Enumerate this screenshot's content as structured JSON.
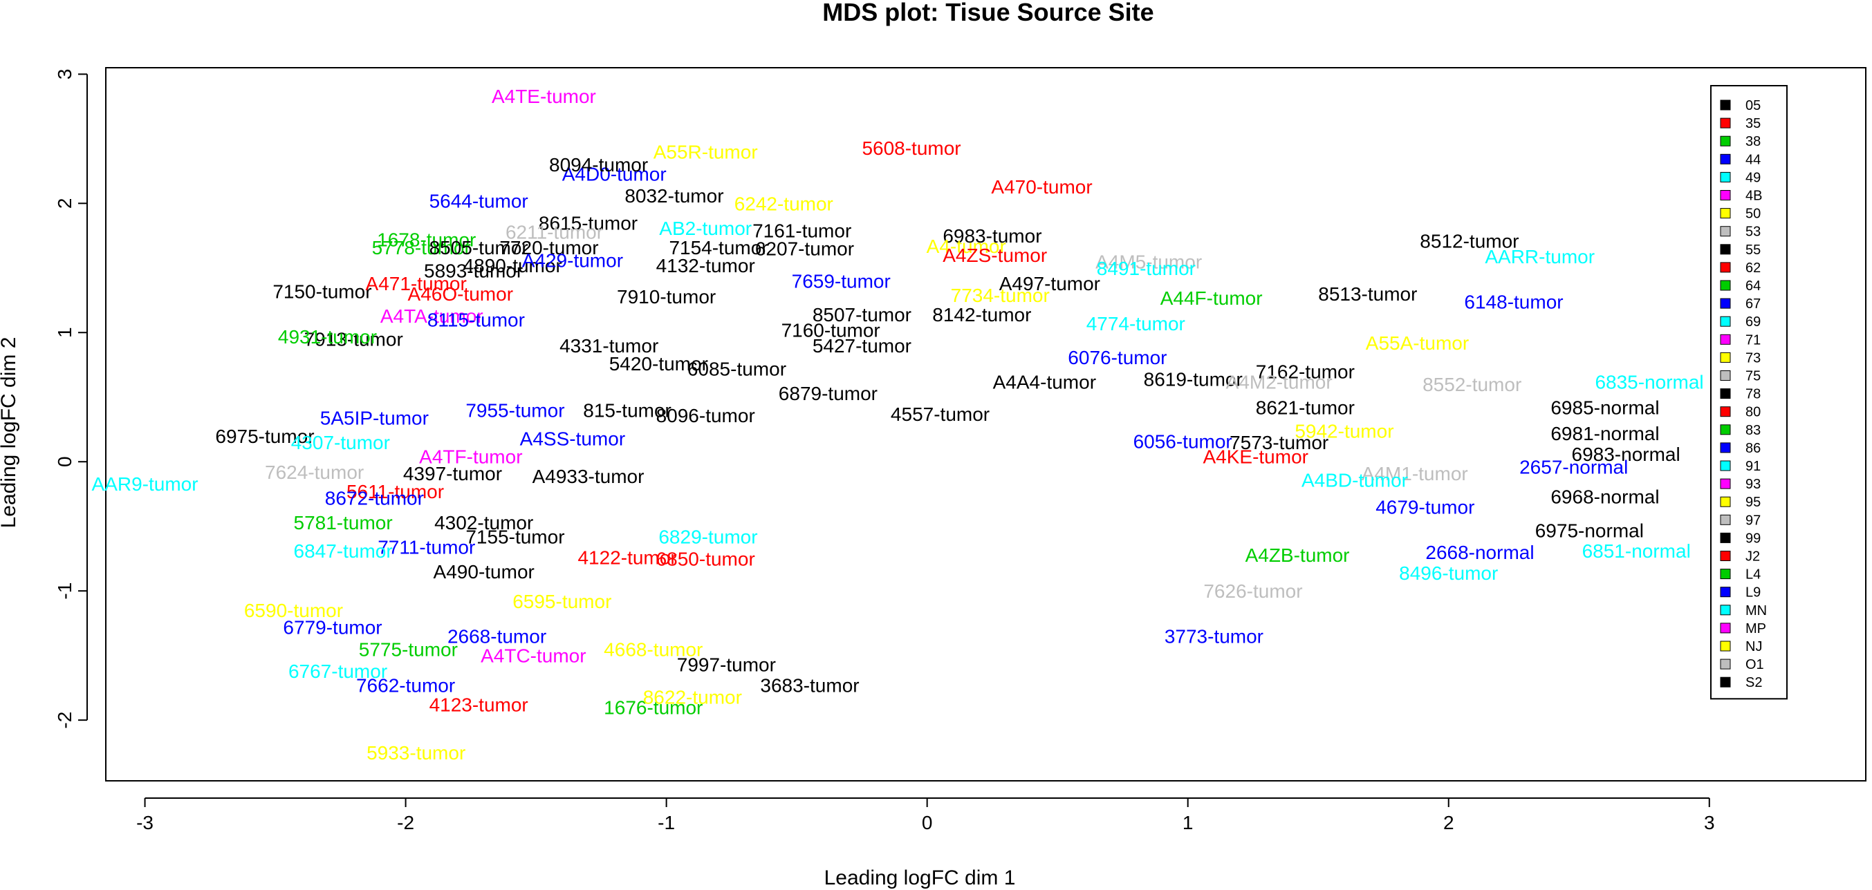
{
  "chart_data": {
    "type": "scatter",
    "title": "MDS plot: Tisue Source Site",
    "xlabel": "Leading logFC dim 1",
    "ylabel": "Leading logFC dim 2",
    "xlim": [
      -3.15,
      3.6
    ],
    "ylim": [
      -2.47,
      3.05
    ],
    "x_ticks": [
      -3,
      -2,
      -1,
      0,
      1,
      2,
      3
    ],
    "y_ticks": [
      -2,
      -1,
      0,
      1,
      2,
      3
    ],
    "grid": false,
    "legend_position": "right",
    "legend": [
      {
        "label": "05",
        "color": "#000000"
      },
      {
        "label": "35",
        "color": "#FF0000"
      },
      {
        "label": "38",
        "color": "#00CD00"
      },
      {
        "label": "44",
        "color": "#0000FF"
      },
      {
        "label": "49",
        "color": "#00FFFF"
      },
      {
        "label": "4B",
        "color": "#FF00FF"
      },
      {
        "label": "50",
        "color": "#FFFF00"
      },
      {
        "label": "53",
        "color": "#BEBEBE"
      },
      {
        "label": "55",
        "color": "#000000"
      },
      {
        "label": "62",
        "color": "#FF0000"
      },
      {
        "label": "64",
        "color": "#00CD00"
      },
      {
        "label": "67",
        "color": "#0000FF"
      },
      {
        "label": "69",
        "color": "#00FFFF"
      },
      {
        "label": "71",
        "color": "#FF00FF"
      },
      {
        "label": "73",
        "color": "#FFFF00"
      },
      {
        "label": "75",
        "color": "#BEBEBE"
      },
      {
        "label": "78",
        "color": "#000000"
      },
      {
        "label": "80",
        "color": "#FF0000"
      },
      {
        "label": "83",
        "color": "#00CD00"
      },
      {
        "label": "86",
        "color": "#0000FF"
      },
      {
        "label": "91",
        "color": "#00FFFF"
      },
      {
        "label": "93",
        "color": "#FF00FF"
      },
      {
        "label": "95",
        "color": "#FFFF00"
      },
      {
        "label": "97",
        "color": "#BEBEBE"
      },
      {
        "label": "99",
        "color": "#000000"
      },
      {
        "label": "J2",
        "color": "#FF0000"
      },
      {
        "label": "L4",
        "color": "#00CD00"
      },
      {
        "label": "L9",
        "color": "#0000FF"
      },
      {
        "label": "MN",
        "color": "#00FFFF"
      },
      {
        "label": "MP",
        "color": "#FF00FF"
      },
      {
        "label": "NJ",
        "color": "#FFFF00"
      },
      {
        "label": "O1",
        "color": "#BEBEBE"
      },
      {
        "label": "S2",
        "color": "#000000"
      }
    ],
    "points": [
      {
        "label": "A4TE-tumor",
        "x": -1.47,
        "y": 2.83,
        "color": "#FF00FF"
      },
      {
        "label": "A55R-tumor",
        "x": -0.85,
        "y": 2.4,
        "color": "#FFFF00"
      },
      {
        "label": "5608-tumor",
        "x": -0.06,
        "y": 2.43,
        "color": "#FF0000"
      },
      {
        "label": "A4D0-tumor",
        "x": -1.2,
        "y": 2.23,
        "color": "#0000FF"
      },
      {
        "label": "8094-tumor",
        "x": -1.26,
        "y": 2.3,
        "color": "#000000"
      },
      {
        "label": "5644-tumor",
        "x": -1.72,
        "y": 2.02,
        "color": "#0000FF"
      },
      {
        "label": "8032-tumor",
        "x": -0.97,
        "y": 2.06,
        "color": "#000000"
      },
      {
        "label": "A470-tumor",
        "x": 0.44,
        "y": 2.13,
        "color": "#FF0000"
      },
      {
        "label": "6242-tumor",
        "x": -0.55,
        "y": 2.0,
        "color": "#FFFF00"
      },
      {
        "label": "8615-tumor",
        "x": -1.3,
        "y": 1.85,
        "color": "#000000"
      },
      {
        "label": "6211-tumor",
        "x": -1.43,
        "y": 1.78,
        "color": "#BEBEBE"
      },
      {
        "label": "AB2-tumor",
        "x": -0.85,
        "y": 1.81,
        "color": "#00FFFF"
      },
      {
        "label": "7161-tumor",
        "x": -0.48,
        "y": 1.79,
        "color": "#000000"
      },
      {
        "label": "6983-tumor",
        "x": 0.25,
        "y": 1.75,
        "color": "#000000"
      },
      {
        "label": "8512-tumor",
        "x": 2.08,
        "y": 1.71,
        "color": "#000000"
      },
      {
        "label": "1678-tumor",
        "x": -1.92,
        "y": 1.72,
        "color": "#00CD00"
      },
      {
        "label": "5778-tumor",
        "x": -1.94,
        "y": 1.66,
        "color": "#00CD00"
      },
      {
        "label": "8505-tumor",
        "x": -1.72,
        "y": 1.66,
        "color": "#000000"
      },
      {
        "label": "7720-tumor",
        "x": -1.45,
        "y": 1.66,
        "color": "#000000"
      },
      {
        "label": "7154-tumor",
        "x": -0.8,
        "y": 1.66,
        "color": "#000000"
      },
      {
        "label": "6207-tumor",
        "x": -0.47,
        "y": 1.65,
        "color": "#000000"
      },
      {
        "label": "A4-tumor",
        "x": 0.15,
        "y": 1.67,
        "color": "#FFFF00"
      },
      {
        "label": "AARR-tumor",
        "x": 2.35,
        "y": 1.59,
        "color": "#00FFFF"
      },
      {
        "label": "A4M5-tumor",
        "x": 0.85,
        "y": 1.55,
        "color": "#BEBEBE"
      },
      {
        "label": "A4ZS-tumor",
        "x": 0.26,
        "y": 1.6,
        "color": "#FF0000"
      },
      {
        "label": "8491-tumor",
        "x": 0.84,
        "y": 1.5,
        "color": "#00FFFF"
      },
      {
        "label": "4890-tumor",
        "x": -1.59,
        "y": 1.52,
        "color": "#000000"
      },
      {
        "label": "A429-tumor",
        "x": -1.36,
        "y": 1.56,
        "color": "#0000FF"
      },
      {
        "label": "4132-tumor",
        "x": -0.85,
        "y": 1.52,
        "color": "#000000"
      },
      {
        "label": "5893-tumor",
        "x": -1.74,
        "y": 1.48,
        "color": "#000000"
      },
      {
        "label": "A497-tumor",
        "x": 0.47,
        "y": 1.38,
        "color": "#000000"
      },
      {
        "label": "7150-tumor",
        "x": -2.32,
        "y": 1.32,
        "color": "#000000"
      },
      {
        "label": "A471-tumor",
        "x": -1.96,
        "y": 1.38,
        "color": "#FF0000"
      },
      {
        "label": "A46O-tumor",
        "x": -1.79,
        "y": 1.3,
        "color": "#FF0000"
      },
      {
        "label": "8513-tumor",
        "x": 1.69,
        "y": 1.3,
        "color": "#000000"
      },
      {
        "label": "A44F-tumor",
        "x": 1.09,
        "y": 1.27,
        "color": "#00CD00"
      },
      {
        "label": "6148-tumor",
        "x": 2.25,
        "y": 1.24,
        "color": "#0000FF"
      },
      {
        "label": "7910-tumor",
        "x": -1.0,
        "y": 1.28,
        "color": "#000000"
      },
      {
        "label": "7659-tumor",
        "x": -0.33,
        "y": 1.4,
        "color": "#0000FF"
      },
      {
        "label": "7734-tumor",
        "x": 0.28,
        "y": 1.29,
        "color": "#FFFF00"
      },
      {
        "label": "A4TA-tumor",
        "x": -1.9,
        "y": 1.13,
        "color": "#FF00FF"
      },
      {
        "label": "8115-tumor",
        "x": -1.73,
        "y": 1.1,
        "color": "#0000FF"
      },
      {
        "label": "8507-tumor",
        "x": -0.25,
        "y": 1.14,
        "color": "#000000"
      },
      {
        "label": "8142-tumor",
        "x": 0.21,
        "y": 1.14,
        "color": "#000000"
      },
      {
        "label": "7160-tumor",
        "x": -0.37,
        "y": 1.02,
        "color": "#000000"
      },
      {
        "label": "4774-tumor",
        "x": 0.8,
        "y": 1.07,
        "color": "#00FFFF"
      },
      {
        "label": "A55A-tumor",
        "x": 1.88,
        "y": 0.92,
        "color": "#FFFF00"
      },
      {
        "label": "7913-tumor",
        "x": -2.2,
        "y": 0.95,
        "color": "#000000"
      },
      {
        "label": "4931-tumor",
        "x": -2.3,
        "y": 0.97,
        "color": "#00CD00"
      },
      {
        "label": "5427-tumor",
        "x": -0.25,
        "y": 0.9,
        "color": "#000000"
      },
      {
        "label": "4331-tumor",
        "x": -1.22,
        "y": 0.9,
        "color": "#000000"
      },
      {
        "label": "6076-tumor",
        "x": 0.73,
        "y": 0.81,
        "color": "#0000FF"
      },
      {
        "label": "5420-tumor",
        "x": -1.03,
        "y": 0.76,
        "color": "#000000"
      },
      {
        "label": "6085-tumor",
        "x": -0.73,
        "y": 0.72,
        "color": "#000000"
      },
      {
        "label": "7162-tumor",
        "x": 1.45,
        "y": 0.7,
        "color": "#000000"
      },
      {
        "label": "8619-tumor",
        "x": 1.02,
        "y": 0.64,
        "color": "#000000"
      },
      {
        "label": "A4M2-tumor",
        "x": 1.35,
        "y": 0.62,
        "color": "#BEBEBE"
      },
      {
        "label": "8552-tumor",
        "x": 2.09,
        "y": 0.6,
        "color": "#BEBEBE"
      },
      {
        "label": "6835-normal",
        "x": 2.77,
        "y": 0.62,
        "color": "#00FFFF"
      },
      {
        "label": "A4A4-tumor",
        "x": 0.45,
        "y": 0.62,
        "color": "#000000"
      },
      {
        "label": "6879-tumor",
        "x": -0.38,
        "y": 0.53,
        "color": "#000000"
      },
      {
        "label": "8621-tumor",
        "x": 1.45,
        "y": 0.42,
        "color": "#000000"
      },
      {
        "label": "5A5IP-tumor",
        "x": -2.12,
        "y": 0.34,
        "color": "#0000FF"
      },
      {
        "label": "7955-tumor",
        "x": -1.58,
        "y": 0.4,
        "color": "#0000FF"
      },
      {
        "label": "815-tumor",
        "x": -1.15,
        "y": 0.4,
        "color": "#000000"
      },
      {
        "label": "8096-tumor",
        "x": -0.85,
        "y": 0.36,
        "color": "#000000"
      },
      {
        "label": "4557-tumor",
        "x": 0.05,
        "y": 0.37,
        "color": "#000000"
      },
      {
        "label": "6985-normal",
        "x": 2.6,
        "y": 0.42,
        "color": "#000000"
      },
      {
        "label": "5942-tumor",
        "x": 1.6,
        "y": 0.24,
        "color": "#FFFF00"
      },
      {
        "label": "6975-tumor",
        "x": -2.54,
        "y": 0.2,
        "color": "#000000"
      },
      {
        "label": "6981-normal",
        "x": 2.6,
        "y": 0.22,
        "color": "#000000"
      },
      {
        "label": "6983-normal",
        "x": 2.68,
        "y": 0.06,
        "color": "#000000"
      },
      {
        "label": "A4SS-tumor",
        "x": -1.36,
        "y": 0.18,
        "color": "#0000FF"
      },
      {
        "label": "7573-tumor",
        "x": 1.35,
        "y": 0.15,
        "color": "#000000"
      },
      {
        "label": "6056-tumor",
        "x": 0.98,
        "y": 0.16,
        "color": "#0000FF"
      },
      {
        "label": "AAR9-tumor",
        "x": -3.0,
        "y": -0.17,
        "color": "#00FFFF"
      },
      {
        "label": "4307-tumor",
        "x": -2.25,
        "y": 0.15,
        "color": "#00FFFF"
      },
      {
        "label": "7624-tumor",
        "x": -2.35,
        "y": -0.08,
        "color": "#BEBEBE"
      },
      {
        "label": "4397-tumor",
        "x": -1.82,
        "y": -0.09,
        "color": "#000000"
      },
      {
        "label": "A4933-tumor",
        "x": -1.3,
        "y": -0.11,
        "color": "#000000"
      },
      {
        "label": "A4TF-tumor",
        "x": -1.75,
        "y": 0.04,
        "color": "#FF00FF"
      },
      {
        "label": "A4KE-tumor",
        "x": 1.26,
        "y": 0.04,
        "color": "#FF0000"
      },
      {
        "label": "A4M1-tumor",
        "x": 1.87,
        "y": -0.09,
        "color": "#BEBEBE"
      },
      {
        "label": "2657-normal",
        "x": 2.48,
        "y": -0.04,
        "color": "#0000FF"
      },
      {
        "label": "A4BD-tumor",
        "x": 1.64,
        "y": -0.14,
        "color": "#00FFFF"
      },
      {
        "label": "5611-tumor",
        "x": -2.04,
        "y": -0.23,
        "color": "#FF0000"
      },
      {
        "label": "8672-tumor",
        "x": -2.12,
        "y": -0.28,
        "color": "#0000FF"
      },
      {
        "label": "4679-tumor",
        "x": 1.91,
        "y": -0.35,
        "color": "#0000FF"
      },
      {
        "label": "6968-normal",
        "x": 2.6,
        "y": -0.27,
        "color": "#000000"
      },
      {
        "label": "5781-tumor",
        "x": -2.24,
        "y": -0.47,
        "color": "#00CD00"
      },
      {
        "label": "4302-tumor",
        "x": -1.7,
        "y": -0.47,
        "color": "#000000"
      },
      {
        "label": "7155-tumor",
        "x": -1.58,
        "y": -0.58,
        "color": "#000000"
      },
      {
        "label": "6829-tumor",
        "x": -0.84,
        "y": -0.58,
        "color": "#00FFFF"
      },
      {
        "label": "6975-normal",
        "x": 2.54,
        "y": -0.53,
        "color": "#000000"
      },
      {
        "label": "7711-tumor",
        "x": -1.92,
        "y": -0.66,
        "color": "#0000FF"
      },
      {
        "label": "6847-tumor",
        "x": -2.24,
        "y": -0.69,
        "color": "#00FFFF"
      },
      {
        "label": "2668-normal",
        "x": 2.12,
        "y": -0.7,
        "color": "#0000FF"
      },
      {
        "label": "6851-normal",
        "x": 2.72,
        "y": -0.69,
        "color": "#00FFFF"
      },
      {
        "label": "A4ZB-tumor",
        "x": 1.42,
        "y": -0.72,
        "color": "#00CD00"
      },
      {
        "label": "4122-tumor",
        "x": -1.15,
        "y": -0.74,
        "color": "#FF0000"
      },
      {
        "label": "6850-tumor",
        "x": -0.85,
        "y": -0.75,
        "color": "#FF0000"
      },
      {
        "label": "A490-tumor",
        "x": -1.7,
        "y": -0.85,
        "color": "#000000"
      },
      {
        "label": "8496-tumor",
        "x": 2.0,
        "y": -0.86,
        "color": "#00FFFF"
      },
      {
        "label": "7626-tumor",
        "x": 1.25,
        "y": -1.0,
        "color": "#BEBEBE"
      },
      {
        "label": "6595-tumor",
        "x": -1.4,
        "y": -1.08,
        "color": "#FFFF00"
      },
      {
        "label": "6590-tumor",
        "x": -2.43,
        "y": -1.15,
        "color": "#FFFF00"
      },
      {
        "label": "6779-tumor",
        "x": -2.28,
        "y": -1.28,
        "color": "#0000FF"
      },
      {
        "label": "2668-tumor",
        "x": -1.65,
        "y": -1.35,
        "color": "#0000FF"
      },
      {
        "label": "3773-tumor",
        "x": 1.1,
        "y": -1.35,
        "color": "#0000FF"
      },
      {
        "label": "5775-tumor",
        "x": -1.99,
        "y": -1.45,
        "color": "#00CD00"
      },
      {
        "label": "A4TC-tumor",
        "x": -1.51,
        "y": -1.5,
        "color": "#FF00FF"
      },
      {
        "label": "4668-tumor",
        "x": -1.05,
        "y": -1.45,
        "color": "#FFFF00"
      },
      {
        "label": "6767-tumor",
        "x": -2.26,
        "y": -1.62,
        "color": "#00FFFF"
      },
      {
        "label": "7662-tumor",
        "x": -2.0,
        "y": -1.73,
        "color": "#0000FF"
      },
      {
        "label": "4123-tumor",
        "x": -1.72,
        "y": -1.88,
        "color": "#FF0000"
      },
      {
        "label": "1676-tumor",
        "x": -1.05,
        "y": -1.9,
        "color": "#00CD00"
      },
      {
        "label": "8622-tumor",
        "x": -0.9,
        "y": -1.82,
        "color": "#FFFF00"
      },
      {
        "label": "3683-tumor",
        "x": -0.45,
        "y": -1.73,
        "color": "#000000"
      },
      {
        "label": "7997-tumor",
        "x": -0.77,
        "y": -1.57,
        "color": "#000000"
      },
      {
        "label": "5933-tumor",
        "x": -1.96,
        "y": -2.25,
        "color": "#FFFF00"
      }
    ]
  }
}
